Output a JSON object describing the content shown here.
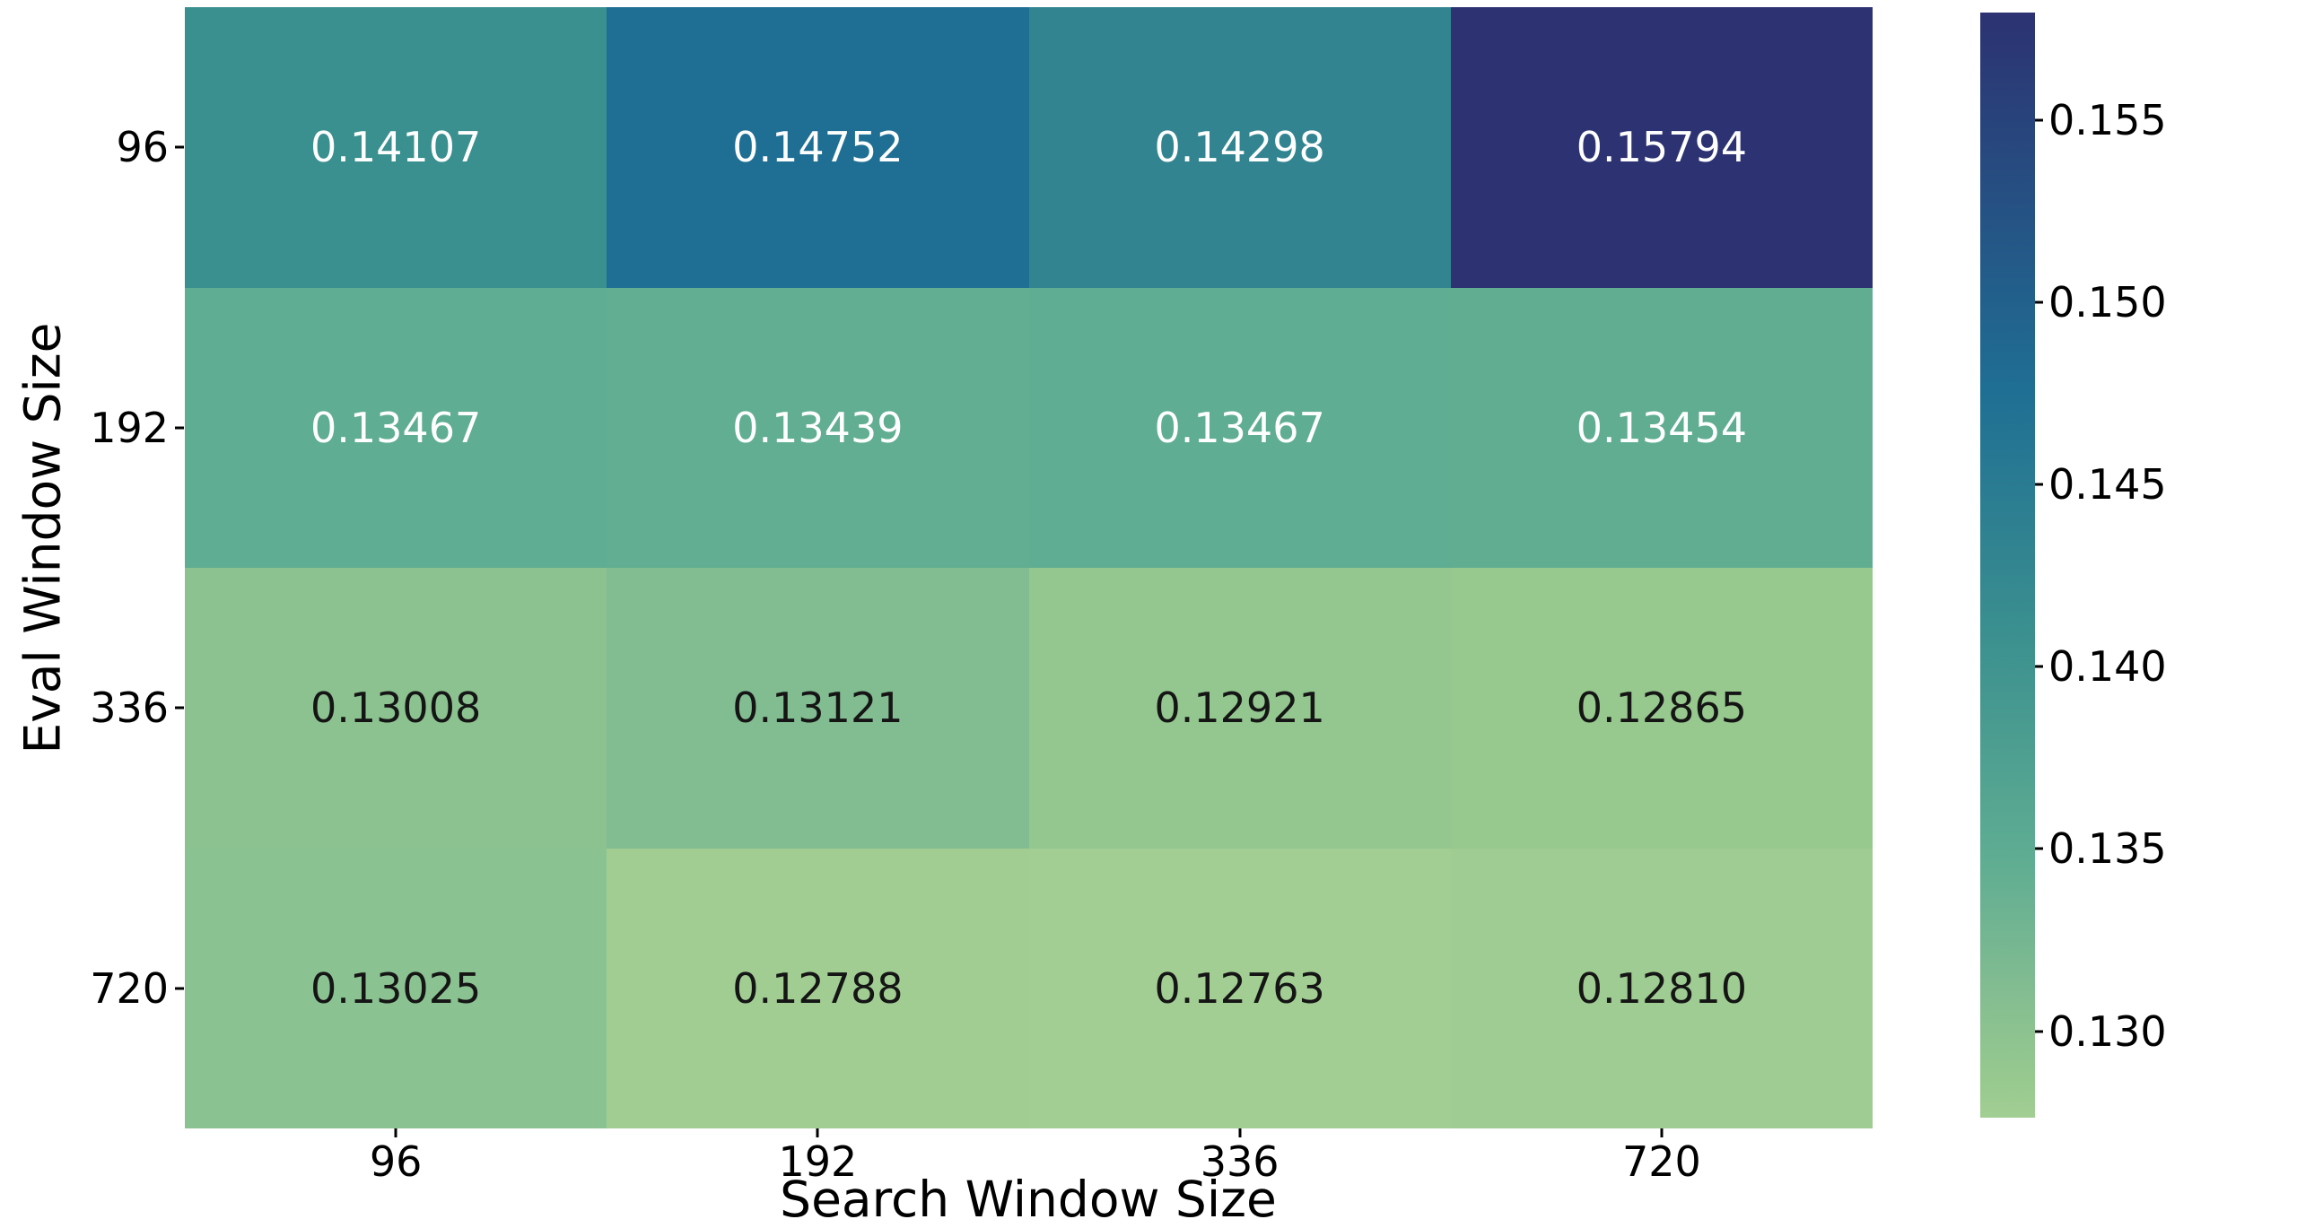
{
  "figure": {
    "background": "#ffffff"
  },
  "chart_data": {
    "type": "heatmap",
    "title": "",
    "xlabel": "Search Window Size",
    "ylabel": "Eval Window Size",
    "x_categories": [
      "96",
      "192",
      "336",
      "720"
    ],
    "y_categories": [
      "96",
      "192",
      "336",
      "720"
    ],
    "values": [
      [
        0.14107,
        0.14752,
        0.14298,
        0.15794
      ],
      [
        0.13467,
        0.13439,
        0.13467,
        0.13454
      ],
      [
        0.13008,
        0.13121,
        0.12921,
        0.12865
      ],
      [
        0.13025,
        0.12788,
        0.12763,
        0.1281
      ]
    ],
    "value_labels": [
      [
        "0.14107",
        "0.14752",
        "0.14298",
        "0.15794"
      ],
      [
        "0.13467",
        "0.13439",
        "0.13467",
        "0.13454"
      ],
      [
        "0.13008",
        "0.13121",
        "0.12921",
        "0.12865"
      ],
      [
        "0.13025",
        "0.12788",
        "0.12763",
        "0.12810"
      ]
    ],
    "cell_colors": [
      [
        "#3a8f8f",
        "#1f6f94",
        "#328590",
        "#2c3272"
      ],
      [
        "#5fad92",
        "#61ae92",
        "#5fad92",
        "#60ad92"
      ],
      [
        "#8cc290",
        "#82bc91",
        "#93c78f",
        "#97c98f"
      ],
      [
        "#8bc291",
        "#a1cd93",
        "#a2ce93",
        "#9fcc92"
      ]
    ],
    "annot_colors": [
      [
        "#ffffff",
        "#ffffff",
        "#ffffff",
        "#ffffff"
      ],
      [
        "#ffffff",
        "#ffffff",
        "#ffffff",
        "#ffffff"
      ],
      [
        "#151515",
        "#151515",
        "#151515",
        "#151515"
      ],
      [
        "#151515",
        "#151515",
        "#151515",
        "#151515"
      ]
    ],
    "colorbar": {
      "vmin": 0.12763,
      "vmax": 0.15794,
      "tick_values": [
        0.155,
        0.15,
        0.145,
        0.14,
        0.135,
        0.13
      ],
      "tick_labels": [
        "0.155",
        "0.150",
        "0.145",
        "0.140",
        "0.135",
        "0.130"
      ],
      "gradient_stops": [
        {
          "pos": 0.0,
          "color": "#2c3272"
        },
        {
          "pos": 0.344,
          "color": "#1f6f94"
        },
        {
          "pos": 0.494,
          "color": "#328590"
        },
        {
          "pos": 0.557,
          "color": "#3a8f8f"
        },
        {
          "pos": 0.768,
          "color": "#5fad92"
        },
        {
          "pos": 0.882,
          "color": "#82bc91"
        },
        {
          "pos": 0.919,
          "color": "#8cc290"
        },
        {
          "pos": 0.966,
          "color": "#97c98f"
        },
        {
          "pos": 1.0,
          "color": "#a2ce93"
        }
      ]
    },
    "layout": {
      "grid": false,
      "legend_position": "colorbar-right"
    }
  }
}
